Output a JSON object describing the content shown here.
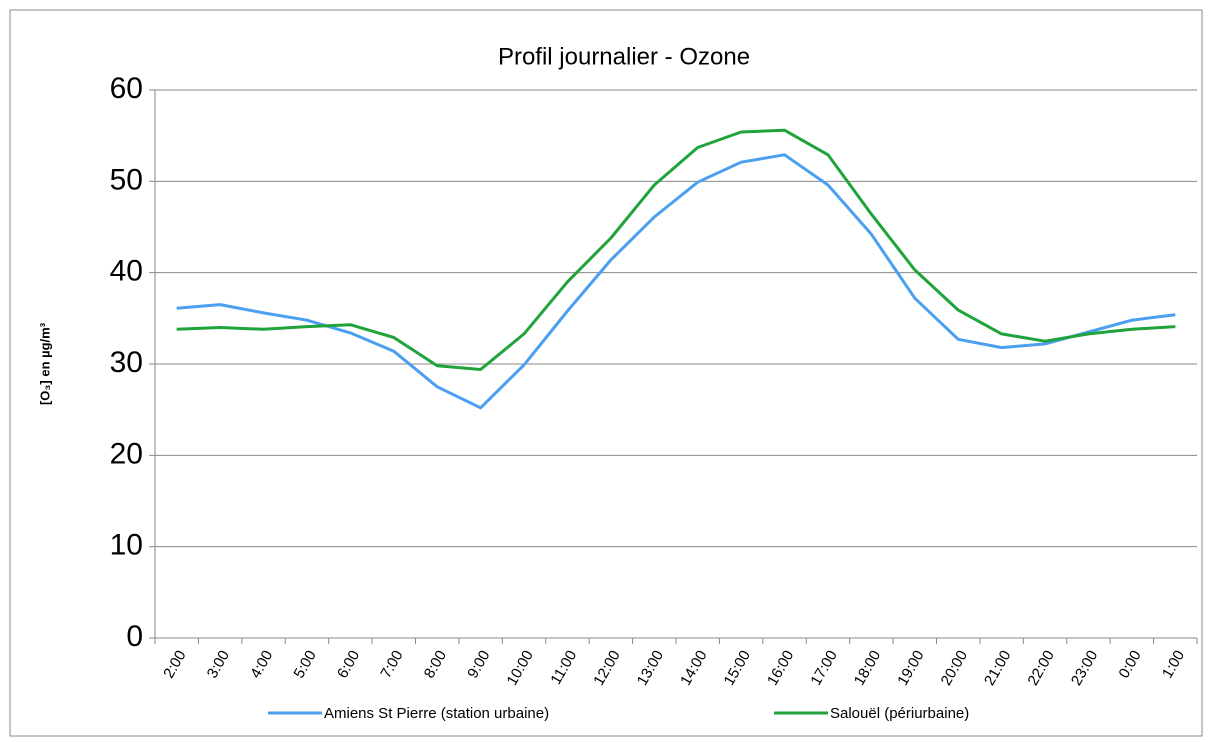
{
  "chart_data": {
    "type": "line",
    "title": "Profil journalier - Ozone",
    "y_label": "[O₃] en µg/m³",
    "categories": [
      "2:00",
      "3:00",
      "4:00",
      "5:00",
      "6:00",
      "7:00",
      "8:00",
      "9:00",
      "10:00",
      "11:00",
      "12:00",
      "13:00",
      "14:00",
      "15:00",
      "16:00",
      "17:00",
      "18:00",
      "19:00",
      "20:00",
      "21:00",
      "22:00",
      "23:00",
      "0:00",
      "1:00"
    ],
    "series": [
      {
        "name": "Amiens St Pierre (station urbaine)",
        "color": "#4a9ff0",
        "values": [
          36.1,
          36.5,
          35.6,
          34.8,
          33.4,
          31.4,
          27.5,
          25.2,
          29.9,
          35.8,
          41.4,
          46.1,
          49.9,
          52.1,
          52.9,
          49.6,
          44.2,
          37.2,
          32.7,
          31.8,
          32.2,
          33.5,
          34.8,
          35.4
        ]
      },
      {
        "name": "Salouël (périurbaine)",
        "color": "#1fa33a",
        "values": [
          33.8,
          34.0,
          33.8,
          34.1,
          34.3,
          32.9,
          29.8,
          29.4,
          33.3,
          39.0,
          43.8,
          49.6,
          53.7,
          55.4,
          55.6,
          52.9,
          46.4,
          40.3,
          35.9,
          33.3,
          32.5,
          33.3,
          33.8,
          34.1
        ]
      }
    ],
    "ylim": [
      0,
      60
    ],
    "yticks": [
      0,
      10,
      20,
      30,
      40,
      50,
      60
    ],
    "grid": true,
    "legend": "bottom"
  }
}
